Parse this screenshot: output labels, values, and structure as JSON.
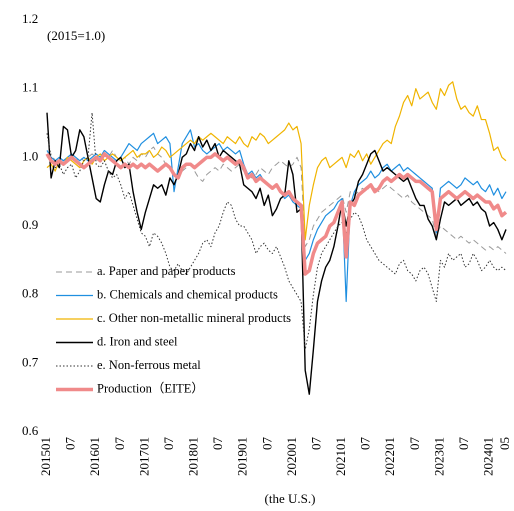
{
  "chart_data": {
    "type": "line",
    "annotation": "(2015=1.0)",
    "x_label": "(the U.S.)",
    "legend": "lower left",
    "grid": false,
    "ylim": [
      0.6,
      1.2
    ],
    "yticks": [
      {
        "value": 0.6,
        "label": "0.6"
      },
      0.7,
      0.8,
      0.9,
      {
        "value": 1.0,
        "label": "1.0"
      },
      1.1,
      {
        "value": 1.2,
        "label": "1.2"
      }
    ],
    "categories": [
      "201501",
      null,
      null,
      null,
      null,
      null,
      "07",
      null,
      null,
      null,
      null,
      null,
      "201601",
      null,
      null,
      null,
      null,
      null,
      "07",
      null,
      null,
      null,
      null,
      null,
      "201701",
      null,
      null,
      null,
      null,
      null,
      "07",
      null,
      null,
      null,
      null,
      null,
      "201801",
      null,
      null,
      null,
      null,
      null,
      "07",
      null,
      null,
      null,
      null,
      null,
      "201901",
      null,
      null,
      null,
      null,
      null,
      "07",
      null,
      null,
      null,
      null,
      null,
      "202001",
      null,
      null,
      null,
      null,
      null,
      "07",
      null,
      null,
      null,
      null,
      null,
      "202101",
      null,
      null,
      null,
      null,
      null,
      "07",
      null,
      null,
      null,
      null,
      null,
      "202201",
      null,
      null,
      null,
      null,
      null,
      "07",
      null,
      null,
      null,
      null,
      null,
      "202301",
      null,
      null,
      null,
      null,
      null,
      "07",
      null,
      null,
      null,
      null,
      null,
      "202401",
      null,
      null,
      null,
      "05"
    ],
    "series": [
      {
        "name": "a. Paper and paper products",
        "color": "#9a9a9a",
        "line_style": "dashed",
        "line_width": 1,
        "values": [
          1.0,
          1.005,
          0.995,
          1.0,
          0.995,
          1.0,
          1.005,
          0.995,
          1.0,
          0.995,
          1.0,
          1.005,
          1.0,
          0.995,
          1.005,
          1.0,
          1.01,
          1.0,
          0.995,
          1.0,
          0.99,
          1.0,
          0.995,
          1.005,
          1.0,
          1.01,
          1.015,
          1.005,
          1.0,
          0.99,
          0.985,
          0.975,
          0.97,
          0.98,
          0.985,
          0.99,
          0.98,
          0.97,
          0.965,
          0.975,
          0.98,
          0.985,
          0.98,
          0.99,
          0.985,
          0.98,
          0.985,
          0.99,
          0.98,
          0.975,
          0.97,
          0.975,
          0.985,
          0.98,
          0.975,
          0.985,
          0.99,
          0.995,
          0.99,
          0.985,
          0.99,
          1.0,
          0.985,
          0.87,
          0.88,
          0.9,
          0.91,
          0.92,
          0.925,
          0.93,
          0.935,
          0.94,
          0.945,
          0.92,
          0.95,
          0.945,
          0.95,
          0.955,
          0.95,
          0.96,
          0.955,
          0.95,
          0.955,
          0.96,
          0.955,
          0.95,
          0.945,
          0.94,
          0.945,
          0.935,
          0.93,
          0.925,
          0.92,
          0.915,
          0.91,
          0.885,
          0.9,
          0.895,
          0.89,
          0.885,
          0.88,
          0.885,
          0.88,
          0.875,
          0.88,
          0.875,
          0.87,
          0.865,
          0.87,
          0.865,
          0.87,
          0.865,
          0.86
        ]
      },
      {
        "name": "b. Chemicals and chemical products",
        "color": "#1f8fe0",
        "line_style": "solid",
        "line_width": 1.2,
        "values": [
          1.01,
          1.0,
          0.995,
          1.0,
          0.995,
          1.0,
          1.005,
          1.0,
          0.995,
          1.0,
          0.995,
          1.0,
          1.005,
          1.0,
          1.01,
          1.005,
          1.0,
          0.995,
          1.0,
          1.01,
          1.02,
          1.015,
          1.01,
          1.02,
          1.025,
          1.03,
          1.035,
          1.02,
          1.025,
          1.03,
          1.02,
          0.95,
          0.985,
          1.02,
          1.03,
          1.04,
          1.015,
          1.02,
          1.01,
          1.005,
          1.01,
          1.015,
          1.02,
          1.01,
          1.015,
          1.01,
          1.005,
          1.01,
          0.99,
          0.975,
          0.98,
          0.97,
          0.975,
          0.965,
          0.96,
          0.955,
          0.96,
          0.95,
          0.94,
          0.945,
          0.935,
          0.93,
          0.925,
          0.85,
          0.86,
          0.88,
          0.895,
          0.905,
          0.915,
          0.92,
          0.925,
          0.935,
          0.94,
          0.79,
          0.93,
          0.95,
          0.96,
          0.965,
          0.97,
          0.98,
          0.97,
          0.975,
          0.985,
          0.99,
          0.98,
          0.985,
          0.99,
          0.98,
          0.985,
          0.98,
          0.975,
          0.97,
          0.965,
          0.96,
          0.955,
          0.89,
          0.955,
          0.96,
          0.965,
          0.96,
          0.955,
          0.96,
          0.97,
          0.965,
          0.96,
          0.965,
          0.955,
          0.95,
          0.96,
          0.945,
          0.955,
          0.94,
          0.95
        ]
      },
      {
        "name": "c. Other non-metallic mineral products",
        "color": "#f0b400",
        "line_style": "solid",
        "line_width": 1.2,
        "values": [
          0.985,
          0.99,
          0.98,
          0.995,
          0.99,
          1.0,
          0.995,
          0.99,
          0.985,
          0.995,
          1.0,
          0.99,
          1.0,
          1.005,
          0.995,
          1.0,
          1.005,
          1.0,
          0.995,
          1.0,
          1.005,
          1.01,
          1.0,
          1.005,
          1.005,
          1.01,
          1.0,
          1.005,
          1.015,
          1.01,
          1.0,
          1.005,
          1.01,
          1.015,
          1.02,
          1.025,
          1.02,
          1.03,
          1.025,
          1.03,
          1.035,
          1.03,
          1.025,
          1.02,
          1.03,
          1.025,
          1.02,
          1.03,
          1.02,
          1.015,
          1.03,
          1.025,
          1.035,
          1.03,
          1.02,
          1.025,
          1.03,
          1.035,
          1.04,
          1.05,
          1.04,
          1.045,
          1.02,
          0.88,
          0.93,
          0.96,
          0.985,
          0.995,
          1.0,
          0.985,
          0.99,
          0.995,
          1.0,
          0.985,
          1.005,
          1.0,
          1.01,
          0.995,
          1.005,
          0.99,
          1.0,
          1.01,
          1.02,
          1.025,
          1.02,
          1.045,
          1.06,
          1.08,
          1.09,
          1.075,
          1.1,
          1.085,
          1.09,
          1.095,
          1.08,
          1.07,
          1.1,
          1.09,
          1.105,
          1.11,
          1.085,
          1.07,
          1.075,
          1.065,
          1.06,
          1.075,
          1.055,
          1.055,
          1.035,
          1.01,
          1.015,
          1.0,
          0.995
        ]
      },
      {
        "name": "d. Iron and steel",
        "color": "#000000",
        "line_style": "solid",
        "line_width": 1.4,
        "values": [
          1.065,
          0.97,
          0.995,
          0.985,
          1.045,
          1.04,
          1.0,
          1.01,
          1.04,
          1.03,
          1.0,
          0.97,
          0.94,
          0.935,
          0.96,
          0.98,
          0.975,
          0.995,
          1.0,
          0.985,
          0.99,
          0.95,
          0.92,
          0.895,
          0.92,
          0.94,
          0.96,
          0.955,
          0.96,
          0.945,
          0.97,
          0.96,
          0.975,
          1.0,
          1.005,
          1.02,
          1.01,
          1.03,
          1.015,
          1.025,
          1.01,
          1.02,
          1.0,
          1.01,
          1.005,
          1.0,
          0.995,
          0.99,
          0.96,
          0.955,
          0.95,
          0.94,
          0.955,
          0.93,
          0.945,
          0.915,
          0.925,
          0.94,
          0.945,
          0.995,
          0.975,
          0.92,
          0.925,
          0.69,
          0.655,
          0.72,
          0.79,
          0.82,
          0.84,
          0.85,
          0.87,
          0.9,
          0.935,
          0.9,
          0.93,
          0.94,
          0.965,
          0.975,
          0.99,
          1.005,
          1.01,
          0.995,
          0.98,
          0.985,
          0.98,
          0.975,
          0.97,
          0.965,
          0.97,
          0.955,
          0.94,
          0.93,
          0.93,
          0.91,
          0.9,
          0.88,
          0.91,
          0.935,
          0.93,
          0.935,
          0.94,
          0.93,
          0.935,
          0.94,
          0.93,
          0.935,
          0.925,
          0.92,
          0.9,
          0.905,
          0.895,
          0.88,
          0.895
        ]
      },
      {
        "name": "e. Non-ferrous metal",
        "color": "#333333",
        "line_style": "dotted",
        "line_width": 1,
        "values": [
          1.035,
          1.0,
          0.985,
          0.99,
          0.975,
          0.985,
          0.99,
          0.97,
          0.98,
          0.995,
          1.0,
          1.065,
          0.99,
          0.985,
          0.995,
          0.98,
          0.97,
          0.975,
          0.96,
          0.94,
          0.95,
          0.93,
          0.91,
          0.89,
          0.885,
          0.87,
          0.89,
          0.885,
          0.875,
          0.86,
          0.84,
          0.835,
          0.845,
          0.835,
          0.83,
          0.84,
          0.85,
          0.86,
          0.875,
          0.88,
          0.87,
          0.89,
          0.9,
          0.92,
          0.935,
          0.93,
          0.91,
          0.9,
          0.9,
          0.89,
          0.88,
          0.86,
          0.87,
          0.875,
          0.865,
          0.86,
          0.87,
          0.855,
          0.84,
          0.82,
          0.81,
          0.8,
          0.79,
          0.72,
          0.75,
          0.8,
          0.84,
          0.86,
          0.87,
          0.88,
          0.89,
          0.9,
          0.905,
          0.89,
          0.91,
          0.92,
          0.915,
          0.9,
          0.88,
          0.87,
          0.86,
          0.85,
          0.845,
          0.84,
          0.835,
          0.83,
          0.845,
          0.85,
          0.835,
          0.83,
          0.82,
          0.835,
          0.84,
          0.83,
          0.81,
          0.79,
          0.85,
          0.84,
          0.86,
          0.85,
          0.855,
          0.86,
          0.84,
          0.845,
          0.86,
          0.85,
          0.835,
          0.84,
          0.85,
          0.84,
          0.835,
          0.84,
          0.835
        ]
      },
      {
        "name": "Production（EITE）",
        "color": "#f08a8a",
        "line_style": "solid",
        "line_width": 3.5,
        "values": [
          1.005,
          0.995,
          0.99,
          0.995,
          0.99,
          0.995,
          1.0,
          0.995,
          0.99,
          0.985,
          0.99,
          0.995,
          1.0,
          0.995,
          1.005,
          1.0,
          0.995,
          0.99,
          0.985,
          0.99,
          0.985,
          0.99,
          0.985,
          0.99,
          0.985,
          0.99,
          0.985,
          0.98,
          0.985,
          0.99,
          0.985,
          0.975,
          0.97,
          0.985,
          0.99,
          0.99,
          0.985,
          0.99,
          0.995,
          1.0,
          1.0,
          1.005,
          1.0,
          0.995,
          1.0,
          0.995,
          0.99,
          0.995,
          0.985,
          0.97,
          0.975,
          0.965,
          0.97,
          0.965,
          0.96,
          0.955,
          0.96,
          0.95,
          0.945,
          0.95,
          0.94,
          0.935,
          0.93,
          0.83,
          0.835,
          0.86,
          0.875,
          0.88,
          0.885,
          0.9,
          0.905,
          0.92,
          0.935,
          0.855,
          0.935,
          0.93,
          0.945,
          0.95,
          0.955,
          0.96,
          0.95,
          0.955,
          0.965,
          0.97,
          0.965,
          0.97,
          0.975,
          0.97,
          0.975,
          0.97,
          0.965,
          0.965,
          0.96,
          0.955,
          0.95,
          0.895,
          0.94,
          0.945,
          0.95,
          0.945,
          0.94,
          0.945,
          0.95,
          0.945,
          0.94,
          0.945,
          0.94,
          0.935,
          0.935,
          0.925,
          0.93,
          0.915,
          0.92
        ]
      }
    ]
  }
}
